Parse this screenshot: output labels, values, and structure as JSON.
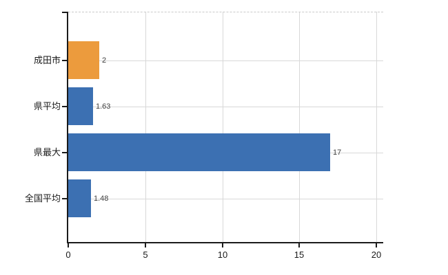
{
  "chart_data": {
    "type": "bar",
    "orientation": "horizontal",
    "title": "",
    "xlabel": "",
    "ylabel": "",
    "categories": [
      "成田市",
      "県平均",
      "県最大",
      "全国平均"
    ],
    "values": [
      2,
      1.63,
      17,
      1.48
    ],
    "value_labels": [
      "2",
      "1.63",
      "17",
      "1.48"
    ],
    "bar_colors": [
      "#EC9B3D",
      "#3C70B2",
      "#3C70B2",
      "#3C70B2"
    ],
    "xlim": [
      0,
      20
    ],
    "x_ticks": [
      0,
      5,
      10,
      15,
      20
    ],
    "x_tick_labels": [
      "0",
      "5",
      "10",
      "15",
      "20"
    ],
    "grid": true,
    "grid_horizontal_at_category_centers": true,
    "top_border_style": "dashed",
    "legend": false
  },
  "colors": {
    "highlight_bar": "#EC9B3D",
    "default_bar": "#3C70B2",
    "gridline": "#D8D8D8",
    "axis": "#1A1A1A",
    "category_text": "#1A1A1A",
    "value_text": "#3F3F3F",
    "background": "#FFFFFF"
  }
}
